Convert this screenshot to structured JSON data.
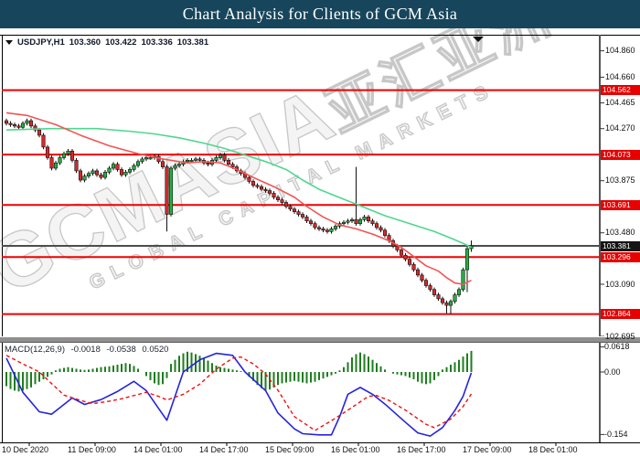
{
  "title_bar": {
    "text": "Chart Analysis for Clients of GCM Asia",
    "bg": "#17465c",
    "fg": "#ffffff"
  },
  "chart_header": {
    "symbol_period": "USDJPY,H1",
    "open": "103.360",
    "high": "103.422",
    "low": "103.336",
    "close": "103.381"
  },
  "macd_header": {
    "label": "MACD(12,26,9)",
    "value_macd": "-0.0018",
    "value_signal": "-0.0538",
    "value_hist": "0.0520"
  },
  "watermark": {
    "main": "GCMASIA",
    "cjk": "亚汇亚洲",
    "sub": "GLOBAL CAPITAL MARKETS"
  },
  "price_axis": {
    "ticks": [
      "104.860",
      "104.660",
      "104.465",
      "104.270",
      "103.875",
      "103.480",
      "103.090",
      "102.695"
    ],
    "red_labels": [
      "104.562",
      "104.073",
      "103.691",
      "103.296",
      "102.864"
    ],
    "current_label": "103.381"
  },
  "macd_axis": {
    "ticks": [
      "0.0618",
      "0.00",
      "-0.154"
    ]
  },
  "time_axis": {
    "labels": [
      "10 Dec 2020",
      "11 Dec 09:00",
      "14 Dec 01:00",
      "14 Dec 17:00",
      "15 Dec 09:00",
      "16 Dec 01:00",
      "16 Dec 17:00",
      "17 Dec 09:00",
      "18 Dec 01:00"
    ]
  },
  "chart_data": {
    "type": "candlestick+macd",
    "symbol": "USDJPY",
    "timeframe": "H1",
    "title": "Chart Analysis for Clients of GCM Asia",
    "ohlc_last": {
      "open": 103.36,
      "high": 103.422,
      "low": 103.336,
      "close": 103.381
    },
    "price_range_visible": [
      102.695,
      104.98
    ],
    "macd_range_visible": [
      -0.173,
      0.074
    ],
    "hlines": [
      104.562,
      104.073,
      103.691,
      103.296,
      102.864
    ],
    "current_price": 103.381,
    "colors": {
      "hline": "#ee0000",
      "current_line": "#4d4d4d",
      "up": "#27ae43",
      "down": "#d42a2a",
      "wick": "#111111",
      "ma_green": "#4fd690",
      "ma_red": "#f25454",
      "hist": "#1e7d1e",
      "macd": "#2424dd",
      "signal": "#ee1111"
    },
    "candles": {
      "open_first": 104.33,
      "pad": 0.016,
      "closes": [
        104.31,
        104.3,
        104.29,
        104.28,
        104.31,
        104.33,
        104.29,
        104.26,
        104.22,
        104.13,
        104.05,
        103.97,
        104.01,
        104.05,
        104.08,
        104.1,
        104.03,
        103.95,
        103.88,
        103.91,
        103.93,
        103.95,
        103.92,
        103.9,
        103.94,
        103.97,
        104.0,
        103.96,
        103.92,
        103.94,
        103.96,
        103.99,
        104.02,
        104.04,
        104.05,
        104.05,
        104.06,
        104.02,
        103.98,
        103.62,
        103.97,
        103.99,
        104.0,
        104.02,
        104.03,
        104.03,
        104.04,
        104.03,
        104.01,
        104.0,
        104.03,
        104.05,
        104.07,
        104.03,
        104.0,
        103.98,
        103.95,
        103.93,
        103.9,
        103.87,
        103.84,
        103.83,
        103.81,
        103.8,
        103.78,
        103.75,
        103.73,
        103.71,
        103.68,
        103.66,
        103.64,
        103.62,
        103.6,
        103.57,
        103.55,
        103.52,
        103.51,
        103.5,
        103.49,
        103.51,
        103.53,
        103.55,
        103.56,
        103.57,
        103.58,
        103.55,
        103.58,
        103.6,
        103.57,
        103.55,
        103.52,
        103.5,
        103.46,
        103.42,
        103.38,
        103.35,
        103.31,
        103.28,
        103.24,
        103.2,
        103.16,
        103.12,
        103.08,
        103.05,
        103.01,
        102.98,
        102.95,
        102.93,
        102.96,
        103.01,
        103.05,
        103.2,
        103.36,
        103.381
      ],
      "overrides": {
        "39": {
          "l": 103.49
        },
        "85": {
          "h": 103.98
        },
        "107": {
          "l": 102.87
        },
        "108": {
          "l": 102.865
        },
        "112": {
          "l": 103.03
        },
        "113": {
          "o": 103.36,
          "h": 103.422,
          "l": 103.336
        }
      }
    },
    "ma_green": [
      [
        0,
        104.26
      ],
      [
        11,
        104.27
      ],
      [
        22,
        104.27
      ],
      [
        30,
        104.25
      ],
      [
        36,
        104.23
      ],
      [
        42,
        104.2
      ],
      [
        48,
        104.16
      ],
      [
        53,
        104.12
      ],
      [
        58,
        104.07
      ],
      [
        63,
        104.02
      ],
      [
        68,
        103.96
      ],
      [
        72,
        103.88
      ],
      [
        76,
        103.81
      ],
      [
        80,
        103.76
      ],
      [
        84,
        103.71
      ],
      [
        88,
        103.66
      ],
      [
        92,
        103.61
      ],
      [
        96,
        103.57
      ],
      [
        100,
        103.53
      ],
      [
        104,
        103.49
      ],
      [
        108,
        103.44
      ],
      [
        111,
        103.4
      ],
      [
        113,
        103.37
      ]
    ],
    "ma_red": [
      [
        0,
        104.39
      ],
      [
        5,
        104.37
      ],
      [
        12,
        104.3
      ],
      [
        18,
        104.22
      ],
      [
        25,
        104.14
      ],
      [
        32,
        104.08
      ],
      [
        38,
        104.04
      ],
      [
        44,
        104.01
      ],
      [
        48,
        104.02
      ],
      [
        52,
        104.01
      ],
      [
        56,
        103.96
      ],
      [
        60,
        103.9
      ],
      [
        65,
        103.83
      ],
      [
        70,
        103.75
      ],
      [
        73,
        103.68
      ],
      [
        77,
        103.6
      ],
      [
        81,
        103.54
      ],
      [
        85,
        103.51
      ],
      [
        89,
        103.47
      ],
      [
        93,
        103.42
      ],
      [
        96,
        103.37
      ],
      [
        99,
        103.3
      ],
      [
        102,
        103.23
      ],
      [
        105,
        103.19
      ],
      [
        107,
        103.14
      ],
      [
        109,
        103.1
      ],
      [
        111,
        103.09
      ],
      [
        113,
        103.12
      ]
    ],
    "macd": {
      "params": [
        12,
        26,
        9
      ],
      "last_values": {
        "macd": -0.0018,
        "signal": -0.0538,
        "histogram": 0.052
      },
      "histogram": [
        -0.035,
        -0.042,
        -0.046,
        -0.048,
        -0.046,
        -0.042,
        -0.038,
        -0.03,
        -0.024,
        -0.018,
        -0.012,
        -0.006,
        0.004,
        0.008,
        0.01,
        0.012,
        0.01,
        0.008,
        0.006,
        0.005,
        0.006,
        0.008,
        0.01,
        0.012,
        0.013,
        0.014,
        0.016,
        0.018,
        0.02,
        0.022,
        0.02,
        0.015,
        0.008,
        0.0,
        -0.01,
        -0.02,
        -0.028,
        -0.032,
        -0.03,
        -0.015,
        0.02,
        0.03,
        0.04,
        0.046,
        0.05,
        0.048,
        0.044,
        0.04,
        0.034,
        0.028,
        0.022,
        0.016,
        0.012,
        0.01,
        0.008,
        0.006,
        0.004,
        0.002,
        0.0,
        -0.012,
        -0.022,
        -0.032,
        -0.04,
        -0.046,
        -0.043,
        -0.038,
        -0.032,
        -0.028,
        -0.026,
        -0.024,
        -0.022,
        -0.024,
        -0.026,
        -0.028,
        -0.026,
        -0.024,
        -0.02,
        -0.016,
        -0.012,
        -0.008,
        -0.004,
        0.004,
        0.012,
        0.024,
        0.036,
        0.044,
        0.048,
        0.044,
        0.038,
        0.03,
        0.022,
        0.014,
        0.006,
        0.0,
        -0.004,
        -0.006,
        -0.008,
        -0.01,
        -0.014,
        -0.018,
        -0.024,
        -0.028,
        -0.03,
        -0.028,
        -0.02,
        -0.01,
        0.006,
        0.012,
        0.018,
        0.024,
        0.03,
        0.038,
        0.046,
        0.052
      ],
      "macd_line": [
        [
          0,
          0.034
        ],
        [
          4,
          -0.05
        ],
        [
          8,
          -0.098
        ],
        [
          11,
          -0.104
        ],
        [
          16,
          -0.064
        ],
        [
          19,
          -0.08
        ],
        [
          23,
          -0.068
        ],
        [
          27,
          -0.048
        ],
        [
          31,
          -0.023
        ],
        [
          34,
          -0.046
        ],
        [
          37,
          -0.09
        ],
        [
          39,
          -0.119
        ],
        [
          43,
          0.0
        ],
        [
          47,
          0.03
        ],
        [
          51,
          0.046
        ],
        [
          55,
          0.041
        ],
        [
          58,
          0.0
        ],
        [
          63,
          -0.046
        ],
        [
          66,
          -0.101
        ],
        [
          70,
          -0.14
        ],
        [
          72,
          -0.152
        ],
        [
          76,
          -0.155
        ],
        [
          79,
          -0.155
        ],
        [
          81,
          -0.11
        ],
        [
          83,
          -0.055
        ],
        [
          86,
          -0.038
        ],
        [
          89,
          -0.055
        ],
        [
          92,
          -0.079
        ],
        [
          97,
          -0.124
        ],
        [
          100,
          -0.15
        ],
        [
          103,
          -0.158
        ],
        [
          106,
          -0.137
        ],
        [
          109,
          -0.095
        ],
        [
          111,
          -0.06
        ],
        [
          113,
          -0.002
        ]
      ],
      "signal_line": [
        [
          0,
          0.041
        ],
        [
          4,
          0.02
        ],
        [
          8,
          0.0
        ],
        [
          14,
          -0.057
        ],
        [
          18,
          -0.07
        ],
        [
          21,
          -0.078
        ],
        [
          25,
          -0.072
        ],
        [
          28,
          -0.066
        ],
        [
          31,
          -0.058
        ],
        [
          34,
          -0.05
        ],
        [
          37,
          -0.06
        ],
        [
          39,
          -0.069
        ],
        [
          43,
          -0.055
        ],
        [
          47,
          -0.03
        ],
        [
          51,
          0.007
        ],
        [
          55,
          0.034
        ],
        [
          57,
          0.037
        ],
        [
          60,
          0.02
        ],
        [
          63,
          -0.005
        ],
        [
          66,
          -0.045
        ],
        [
          70,
          -0.11
        ],
        [
          75,
          -0.144
        ],
        [
          79,
          -0.12
        ],
        [
          83,
          -0.094
        ],
        [
          88,
          -0.06
        ],
        [
          90,
          -0.058
        ],
        [
          93,
          -0.07
        ],
        [
          97,
          -0.094
        ],
        [
          102,
          -0.129
        ],
        [
          104,
          -0.137
        ],
        [
          108,
          -0.116
        ],
        [
          111,
          -0.085
        ],
        [
          113,
          -0.054
        ]
      ]
    }
  }
}
